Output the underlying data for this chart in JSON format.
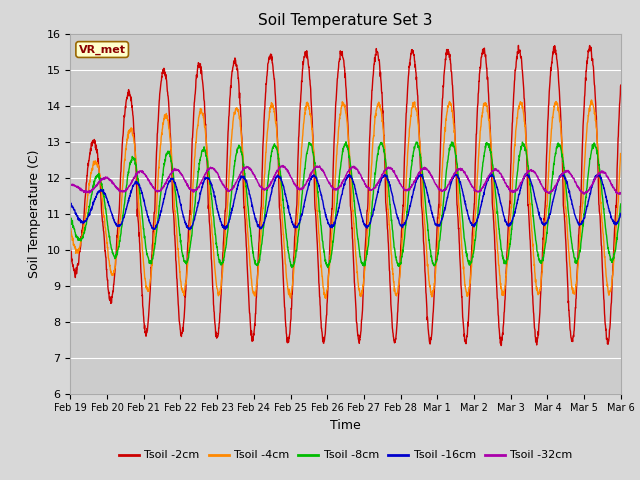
{
  "title": "Soil Temperature Set 3",
  "xlabel": "Time",
  "ylabel": "Soil Temperature (C)",
  "ylim": [
    6.0,
    16.0
  ],
  "yticks": [
    6.0,
    7.0,
    8.0,
    9.0,
    10.0,
    11.0,
    12.0,
    13.0,
    14.0,
    15.0,
    16.0
  ],
  "xtick_labels": [
    "Feb 19",
    "Feb 20",
    "Feb 21",
    "Feb 22",
    "Feb 23",
    "Feb 24",
    "Feb 25",
    "Feb 26",
    "Feb 27",
    "Feb 28",
    "Mar 1",
    "Mar 2",
    "Mar 3",
    "Mar 4",
    "Mar 5",
    "Mar 6"
  ],
  "legend_label": "VR_met",
  "series_labels": [
    "Tsoil -2cm",
    "Tsoil -4cm",
    "Tsoil -8cm",
    "Tsoil -16cm",
    "Tsoil -32cm"
  ],
  "series_colors": [
    "#cc0000",
    "#ff8800",
    "#00bb00",
    "#0000cc",
    "#aa00aa"
  ],
  "bg_color": "#d8d8d8",
  "plot_bg_color": "#cccccc",
  "figsize": [
    6.4,
    4.8
  ],
  "dpi": 100
}
